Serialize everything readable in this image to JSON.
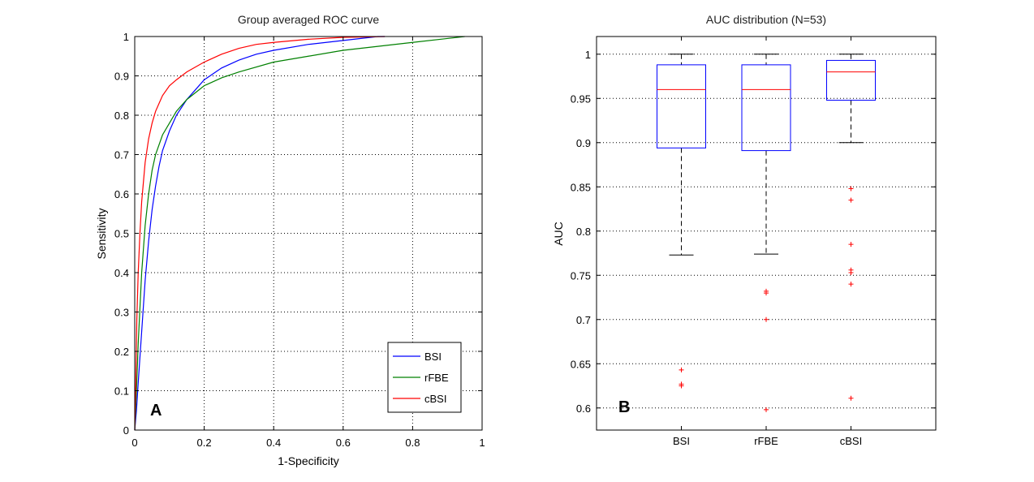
{
  "chart_data": [
    {
      "type": "line",
      "title": "Group averaged ROC curve",
      "xlabel": "1-Specificity",
      "ylabel": "Sensitivity",
      "panel_label": "A",
      "xlim": [
        0,
        1
      ],
      "ylim": [
        0,
        1
      ],
      "xticks": [
        "0",
        "0.2",
        "0.4",
        "0.6",
        "0.8",
        "1"
      ],
      "yticks": [
        "0",
        "0.1",
        "0.2",
        "0.3",
        "0.4",
        "0.5",
        "0.6",
        "0.7",
        "0.8",
        "0.9",
        "1"
      ],
      "grid": true,
      "legend_position": "bottom-right",
      "series": [
        {
          "name": "BSI",
          "color": "#0000ff",
          "x": [
            0,
            0.005,
            0.01,
            0.02,
            0.03,
            0.04,
            0.05,
            0.06,
            0.07,
            0.08,
            0.1,
            0.12,
            0.15,
            0.18,
            0.2,
            0.25,
            0.3,
            0.35,
            0.4,
            0.5,
            0.6,
            0.7,
            0.72
          ],
          "y": [
            0,
            0.05,
            0.12,
            0.25,
            0.38,
            0.48,
            0.56,
            0.62,
            0.67,
            0.71,
            0.76,
            0.8,
            0.84,
            0.87,
            0.89,
            0.92,
            0.94,
            0.955,
            0.965,
            0.98,
            0.99,
            1.0,
            1.0
          ]
        },
        {
          "name": "rFBE",
          "color": "#008000",
          "x": [
            0,
            0.005,
            0.01,
            0.02,
            0.03,
            0.04,
            0.05,
            0.06,
            0.08,
            0.1,
            0.12,
            0.15,
            0.2,
            0.25,
            0.3,
            0.4,
            0.5,
            0.6,
            0.7,
            0.8,
            0.9,
            0.95
          ],
          "y": [
            0,
            0.1,
            0.22,
            0.4,
            0.52,
            0.6,
            0.66,
            0.7,
            0.75,
            0.78,
            0.81,
            0.84,
            0.875,
            0.895,
            0.91,
            0.935,
            0.95,
            0.965,
            0.975,
            0.985,
            0.995,
            1.0
          ]
        },
        {
          "name": "cBSI",
          "color": "#ff0000",
          "x": [
            0,
            0.003,
            0.006,
            0.01,
            0.015,
            0.02,
            0.03,
            0.04,
            0.05,
            0.06,
            0.08,
            0.1,
            0.12,
            0.15,
            0.2,
            0.25,
            0.3,
            0.35,
            0.4,
            0.5,
            0.6,
            0.72
          ],
          "y": [
            0,
            0.12,
            0.28,
            0.4,
            0.5,
            0.58,
            0.68,
            0.74,
            0.78,
            0.81,
            0.85,
            0.875,
            0.89,
            0.91,
            0.935,
            0.955,
            0.97,
            0.98,
            0.985,
            0.993,
            0.998,
            1.0
          ]
        }
      ]
    },
    {
      "type": "box",
      "title": "AUC distribution (N=53)",
      "xlabel": "",
      "ylabel": "AUC",
      "panel_label": "B",
      "ylim": [
        0.575,
        1.02
      ],
      "yticks": [
        "0.6",
        "0.65",
        "0.7",
        "0.75",
        "0.8",
        "0.85",
        "0.9",
        "0.95",
        "1"
      ],
      "grid": true,
      "categories": [
        "BSI",
        "rFBE",
        "cBSI"
      ],
      "box_color": "#0000ff",
      "median_color": "#ff0000",
      "whisker_color": "#000000",
      "outlier_color": "#ff0000",
      "boxes": [
        {
          "name": "BSI",
          "whisker_low": 0.773,
          "q1": 0.894,
          "median": 0.96,
          "q3": 0.988,
          "whisker_high": 1.0,
          "outliers": [
            0.643,
            0.627,
            0.625
          ]
        },
        {
          "name": "rFBE",
          "whisker_low": 0.774,
          "q1": 0.891,
          "median": 0.96,
          "q3": 0.988,
          "whisker_high": 1.0,
          "outliers": [
            0.732,
            0.73,
            0.7,
            0.598
          ]
        },
        {
          "name": "cBSI",
          "whisker_low": 0.9,
          "q1": 0.948,
          "median": 0.98,
          "q3": 0.993,
          "whisker_high": 1.0,
          "outliers": [
            0.848,
            0.835,
            0.785,
            0.756,
            0.753,
            0.74,
            0.611
          ]
        }
      ]
    }
  ]
}
